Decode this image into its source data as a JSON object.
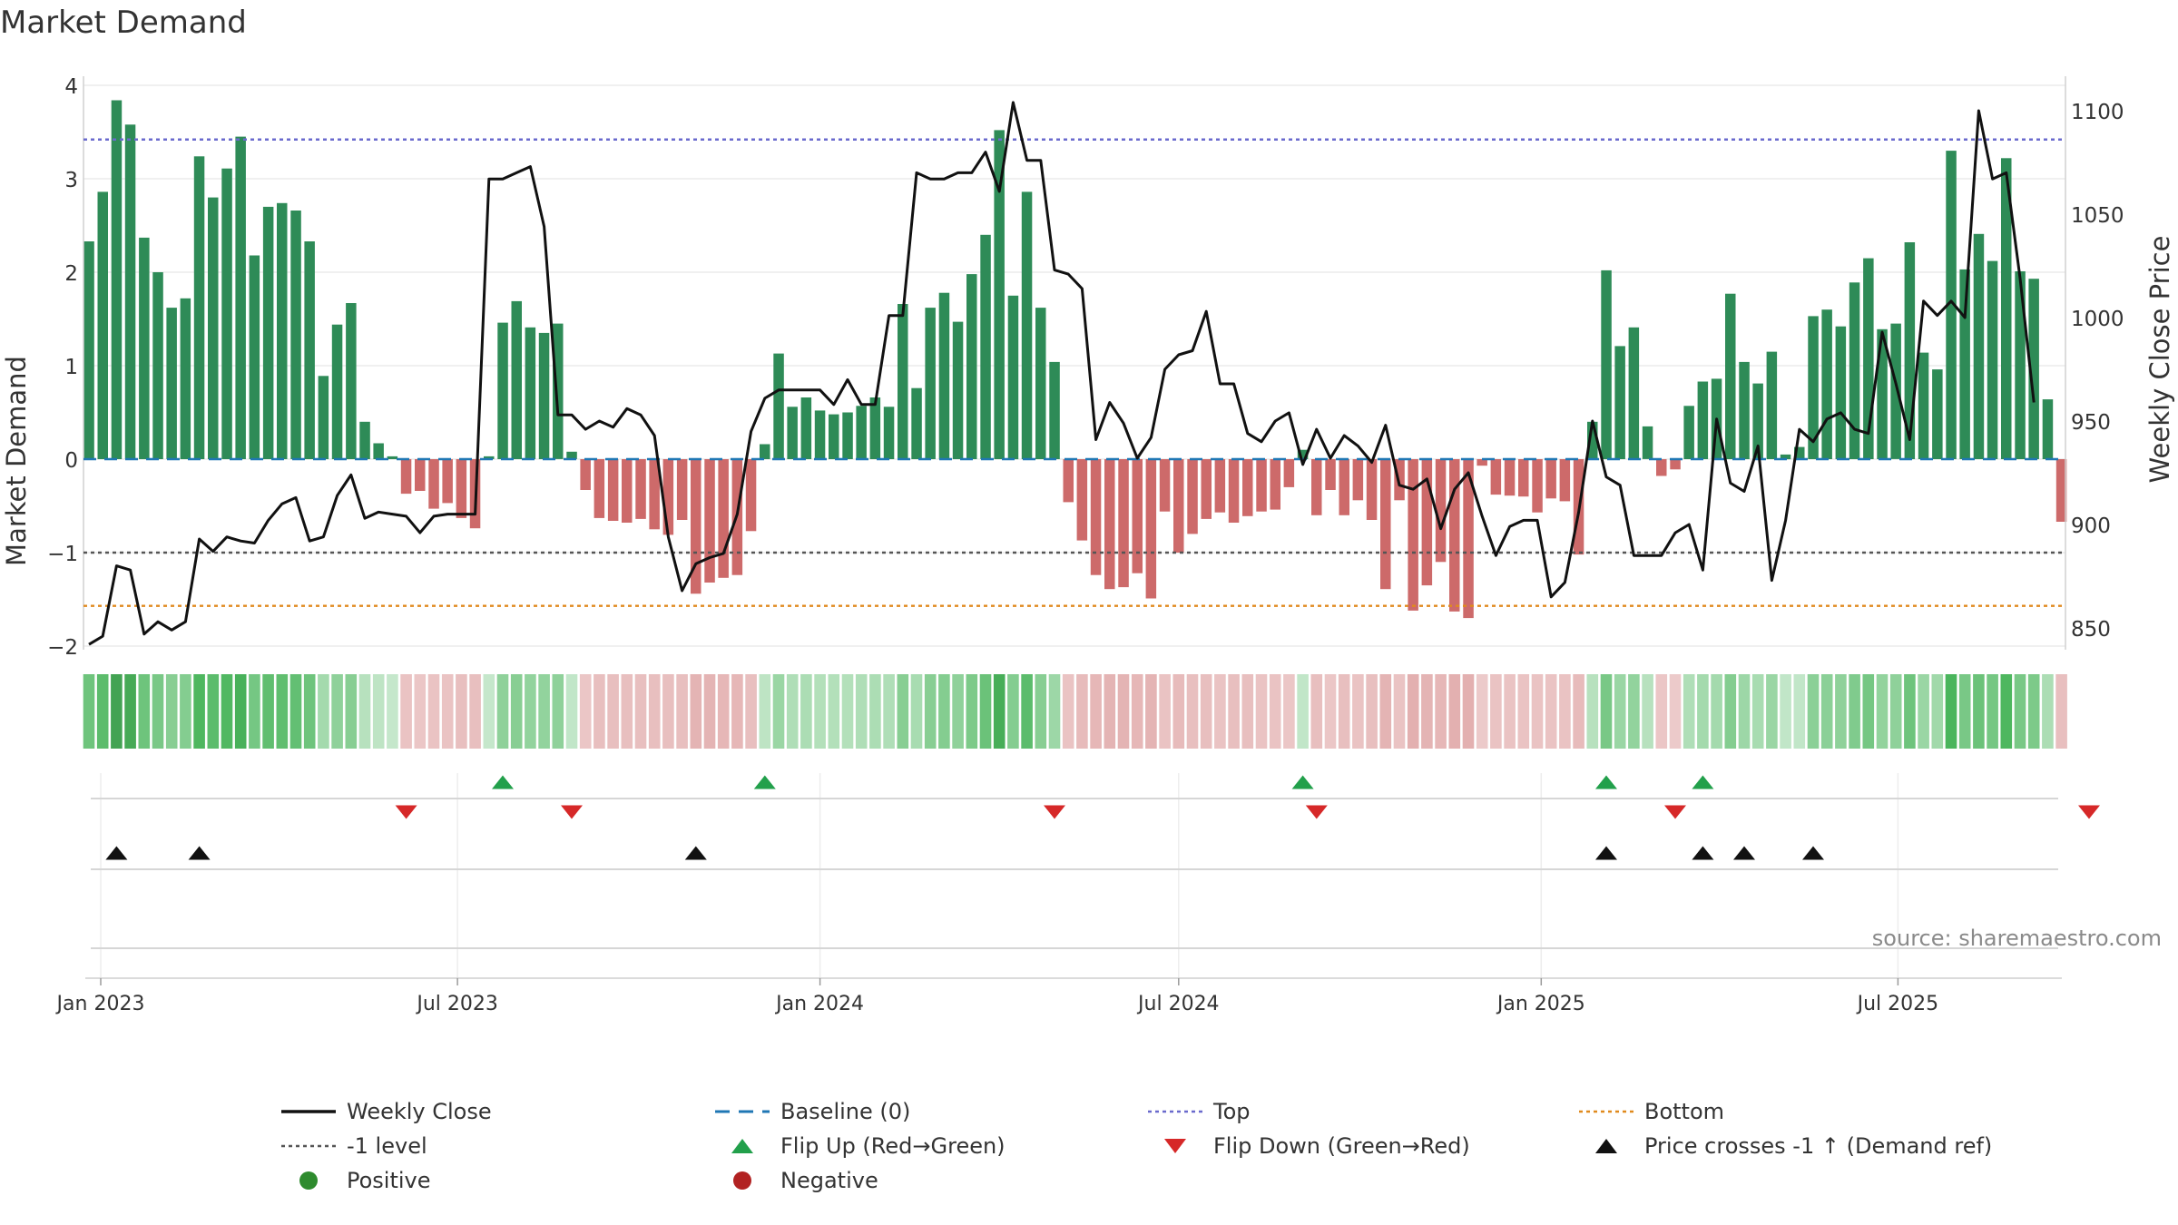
{
  "chart_data": {
    "type": "bar",
    "title": "Market Demand",
    "source": "source: sharemaestro.com",
    "start_date": "2022-12-26",
    "weeks": 146,
    "x_ticks": [
      {
        "date": "2023-01-01",
        "label": "Jan 2023"
      },
      {
        "date": "2023-07-01",
        "label": "Jul 2023"
      },
      {
        "date": "2024-01-01",
        "label": "Jan 2024"
      },
      {
        "date": "2024-07-01",
        "label": "Jul 2024"
      },
      {
        "date": "2025-01-01",
        "label": "Jan 2025"
      },
      {
        "date": "2025-07-01",
        "label": "Jul 2025"
      }
    ],
    "left_axis": {
      "label": "Market Demand",
      "ylim": [
        -2,
        4
      ],
      "ticks": [
        -2,
        -1,
        0,
        1,
        2,
        3,
        4
      ],
      "tick_labels": [
        "−2",
        "−1",
        "0",
        "1",
        "2",
        "3",
        "4"
      ]
    },
    "right_axis": {
      "label": "Weekly Close Price",
      "ylim": [
        840,
        1107
      ],
      "ticks": [
        850,
        900,
        950,
        1000,
        1050,
        1100
      ],
      "tick_labels": [
        "850",
        "900",
        "950",
        "1000",
        "1050",
        "1100"
      ]
    },
    "reference_lines": {
      "top": 3.42,
      "minus_one": -1,
      "bottom": -1.57,
      "baseline": 0
    },
    "series": [
      {
        "name": "Market Demand",
        "values": [
          2.33,
          2.86,
          3.84,
          3.58,
          2.37,
          2.0,
          1.62,
          1.72,
          3.24,
          2.8,
          3.11,
          3.45,
          2.18,
          2.7,
          2.74,
          2.66,
          2.33,
          0.89,
          1.44,
          1.67,
          0.4,
          0.17,
          0.03,
          -0.37,
          -0.34,
          -0.53,
          -0.47,
          -0.63,
          -0.74,
          0.03,
          1.46,
          1.69,
          1.41,
          1.35,
          1.45,
          0.08,
          -0.33,
          -0.63,
          -0.66,
          -0.68,
          -0.64,
          -0.75,
          -0.81,
          -0.65,
          -1.44,
          -1.32,
          -1.27,
          -1.24,
          -0.77,
          0.16,
          1.13,
          0.56,
          0.66,
          0.52,
          0.48,
          0.5,
          0.57,
          0.66,
          0.56,
          1.66,
          0.76,
          1.62,
          1.78,
          1.47,
          1.98,
          2.4,
          3.52,
          1.75,
          2.86,
          1.62,
          1.04,
          -0.46,
          -0.87,
          -1.24,
          -1.39,
          -1.37,
          -1.22,
          -1.49,
          -0.56,
          -1.0,
          -0.8,
          -0.64,
          -0.57,
          -0.68,
          -0.61,
          -0.56,
          -0.54,
          -0.3,
          0.1,
          -0.6,
          -0.33,
          -0.6,
          -0.44,
          -0.65,
          -1.39,
          -0.44,
          -1.62,
          -1.35,
          -1.1,
          -1.63,
          -1.7,
          -0.07,
          -0.38,
          -0.39,
          -0.4,
          -0.57,
          -0.42,
          -0.45,
          -1.02,
          0.4,
          2.02,
          1.21,
          1.41,
          0.35,
          -0.18,
          -0.11,
          0.57,
          0.83,
          0.86,
          1.77,
          1.04,
          0.81,
          1.15,
          0.05,
          0.13,
          1.53,
          1.6,
          1.42,
          1.89,
          2.15,
          1.39,
          1.45,
          2.32,
          1.14,
          0.96,
          3.3,
          2.03,
          2.41,
          2.12,
          3.22,
          2.01,
          1.93,
          0.64,
          -0.67
        ]
      },
      {
        "name": "Weekly Close",
        "values": [
          842,
          846,
          880,
          878,
          847,
          853,
          849,
          853,
          893,
          887,
          894,
          892,
          891,
          902,
          910,
          913,
          892,
          894,
          914,
          924,
          903,
          906,
          905,
          904,
          896,
          904,
          905,
          905,
          905,
          1067,
          1067,
          1070,
          1073,
          1044,
          953,
          953,
          946,
          950,
          947,
          956,
          953,
          943,
          894,
          868,
          881,
          884,
          886,
          905,
          945,
          961,
          965,
          965,
          965,
          965,
          958,
          970,
          958,
          958,
          1001,
          1001,
          1070,
          1067,
          1067,
          1070,
          1070,
          1080,
          1061,
          1104,
          1076,
          1076,
          1023,
          1021,
          1014,
          941,
          959,
          949,
          932,
          942,
          975,
          982,
          984,
          1003,
          968,
          968,
          944,
          940,
          950,
          954,
          929,
          946,
          932,
          943,
          938,
          930,
          948,
          919,
          917,
          922,
          898,
          917,
          925,
          904,
          885,
          899,
          902,
          902,
          865,
          872,
          906,
          950,
          923,
          919,
          885,
          885,
          885,
          896,
          900,
          878,
          951,
          920,
          916,
          938,
          873,
          902,
          946,
          940,
          951,
          954,
          946,
          944,
          993,
          968,
          941,
          1008,
          1001,
          1008,
          1000,
          1100,
          1067,
          1070,
          1019,
          959
        ]
      }
    ],
    "strip_values": [
      2.33,
      2.86,
      3.84,
      3.58,
      2.37,
      2.0,
      1.62,
      1.72,
      3.24,
      2.8,
      3.11,
      3.45,
      2.18,
      2.7,
      2.74,
      2.66,
      2.33,
      0.89,
      1.44,
      1.67,
      0.4,
      0.17,
      0.03,
      -0.37,
      -0.34,
      -0.53,
      -0.47,
      -0.63,
      -0.74,
      0.03,
      1.46,
      1.69,
      1.41,
      1.35,
      1.45,
      0.08,
      -0.33,
      -0.63,
      -0.66,
      -0.68,
      -0.64,
      -0.75,
      -0.81,
      -0.65,
      -1.44,
      -1.32,
      -1.27,
      -1.24,
      -0.77,
      0.16,
      1.13,
      0.56,
      0.66,
      0.52,
      0.48,
      0.5,
      0.57,
      0.66,
      0.56,
      1.66,
      0.76,
      1.62,
      1.78,
      1.47,
      1.98,
      2.4,
      3.52,
      1.75,
      2.86,
      1.62,
      1.04,
      -0.46,
      -0.87,
      -1.24,
      -1.39,
      -1.37,
      -1.22,
      -1.49,
      -0.56,
      -1.0,
      -0.8,
      -0.64,
      -0.57,
      -0.68,
      -0.61,
      -0.56,
      -0.54,
      -0.3,
      0.1,
      -0.6,
      -0.33,
      -0.6,
      -0.44,
      -0.65,
      -1.39,
      -0.44,
      -1.62,
      -1.35,
      -1.1,
      -1.63,
      -1.7,
      -0.07,
      -0.38,
      -0.39,
      -0.4,
      -0.57,
      -0.42,
      -0.45,
      -1.02,
      0.4,
      2.02,
      1.21,
      1.41,
      0.35,
      -0.18,
      -0.11,
      0.57,
      0.83,
      0.86,
      1.77,
      1.04,
      0.81,
      1.15,
      0.05,
      0.13,
      1.53,
      1.6,
      1.42,
      1.89,
      2.15,
      1.39,
      1.45,
      2.32,
      1.14,
      0.96,
      3.3,
      2.03,
      2.41,
      2.12,
      3.22,
      2.01,
      1.93,
      0.64,
      -0.67
    ],
    "flip_up_weeks": [
      30,
      49,
      88,
      110,
      117
    ],
    "flip_down_weeks": [
      23,
      35,
      70,
      89,
      115,
      145
    ],
    "price_cross_weeks": [
      2,
      8,
      44,
      110,
      117,
      120,
      125
    ],
    "colors": {
      "positive": "#2e8b57",
      "negative": "#cd6a6a",
      "close": "#111111",
      "baseline": "#1f77b4",
      "top": "#6a6acd",
      "minus_one": "#555555",
      "bottom": "#e08a1e",
      "flip_up": "#22a04b",
      "flip_down": "#d62828",
      "cross": "#111111",
      "legend_positive": "#2e8b2e",
      "legend_negative": "#b22222"
    },
    "legend": [
      {
        "key": "close",
        "label": "Weekly Close",
        "symbol": "line"
      },
      {
        "key": "baseline",
        "label": "Baseline (0)",
        "symbol": "dash"
      },
      {
        "key": "top",
        "label": "Top",
        "symbol": "dot"
      },
      {
        "key": "bottom",
        "label": "Bottom",
        "symbol": "dot"
      },
      {
        "key": "minus_one",
        "label": "-1 level",
        "symbol": "dot"
      },
      {
        "key": "flip_up",
        "label": "Flip Up (Red→Green)",
        "symbol": "tri-up"
      },
      {
        "key": "flip_down",
        "label": "Flip Down (Green→Red)",
        "symbol": "tri-down"
      },
      {
        "key": "cross",
        "label": "Price crosses -1 ↑ (Demand ref)",
        "symbol": "tri-up"
      },
      {
        "key": "legend_positive",
        "label": "Positive",
        "symbol": "circle"
      },
      {
        "key": "legend_negative",
        "label": "Negative",
        "symbol": "circle"
      }
    ]
  }
}
